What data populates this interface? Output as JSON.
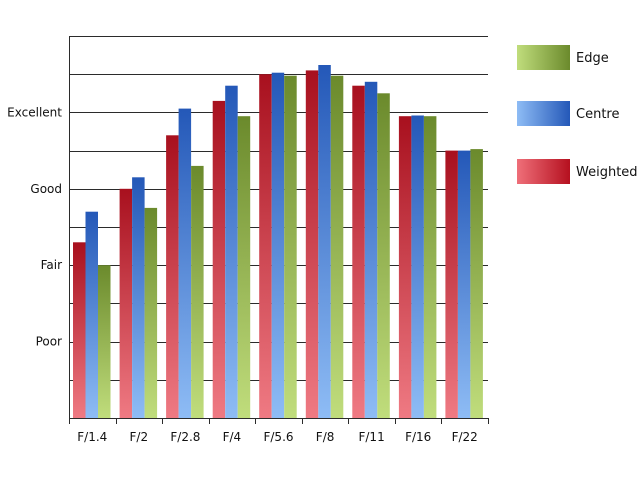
{
  "chart_data": {
    "type": "bar",
    "categories": [
      "F/1.4",
      "F/2",
      "F/2.8",
      "F/4",
      "F/5.6",
      "F/8",
      "F/11",
      "F/16",
      "F/22"
    ],
    "y_tick_labels": [
      {
        "value": 1,
        "label": "Poor"
      },
      {
        "value": 2,
        "label": "Fair"
      },
      {
        "value": 3,
        "label": "Good"
      },
      {
        "value": 4,
        "label": "Excellent"
      }
    ],
    "ylim": [
      0,
      5
    ],
    "grid": true,
    "legend_position": "right",
    "series": [
      {
        "name": "Weighted",
        "color": "#d9394a",
        "values": [
          2.3,
          3.0,
          3.7,
          4.15,
          4.5,
          4.55,
          4.35,
          3.95,
          3.5
        ]
      },
      {
        "name": "Centre",
        "color": "#4f86d8",
        "values": [
          2.7,
          3.15,
          4.05,
          4.35,
          4.52,
          4.62,
          4.4,
          3.96,
          3.5
        ]
      },
      {
        "name": "Edge",
        "color": "#8aad48",
        "values": [
          2.0,
          2.75,
          3.3,
          3.95,
          4.48,
          4.48,
          4.25,
          3.95,
          3.52
        ]
      }
    ],
    "legend": [
      "Edge",
      "Centre",
      "Weighted"
    ]
  }
}
